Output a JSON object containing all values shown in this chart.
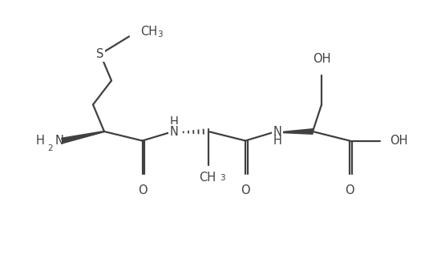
{
  "bg_color": "#ffffff",
  "line_color": "#404040",
  "text_color": "#404040",
  "line_width": 1.6,
  "font_size": 10.5,
  "sub_font_size": 7.5,
  "figsize": [
    5.5,
    3.33
  ],
  "dpi": 100,
  "xlim": [
    -0.5,
    10.5
  ],
  "ylim": [
    -0.2,
    6.2
  ]
}
